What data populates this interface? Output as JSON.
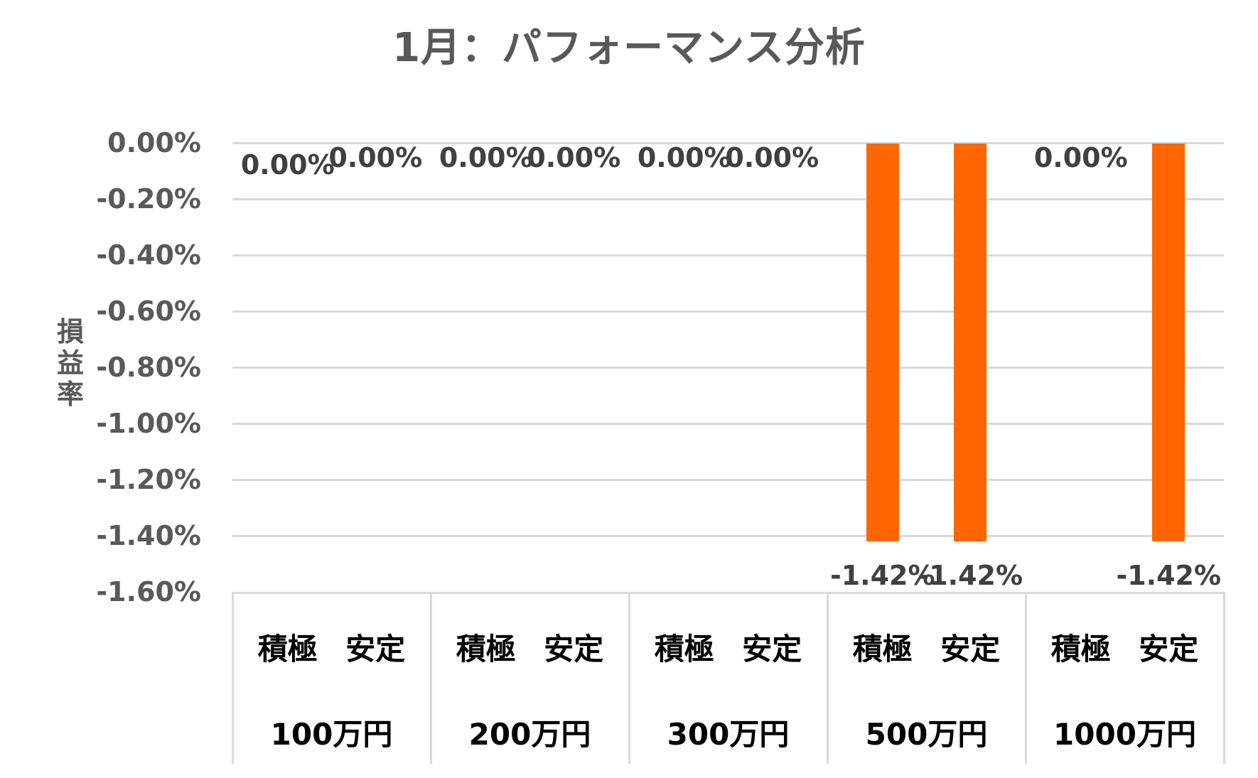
{
  "chart_data": {
    "type": "bar",
    "title": "1月：パフォーマンス分析",
    "xlabel": "",
    "ylabel": "損益率",
    "ylim": [
      -1.6,
      0.0
    ],
    "y_unit": "%",
    "yticks": [
      "0.00%",
      "-0.20%",
      "-0.40%",
      "-0.60%",
      "-0.80%",
      "-1.00%",
      "-1.20%",
      "-1.40%",
      "-1.60%"
    ],
    "grid": true,
    "legend": null,
    "bar_color": "#ff6600",
    "groups": [
      "100万円",
      "200万円",
      "300万円",
      "500万円",
      "1000万円"
    ],
    "subcategories": [
      "積極",
      "安定"
    ],
    "categories": [
      "100万円 積極",
      "100万円 安定",
      "200万円 積極",
      "200万円 安定",
      "300万円 積極",
      "300万円 安定",
      "500万円 積極",
      "500万円 安定",
      "1000万円 積極",
      "1000万円 安定"
    ],
    "values": [
      0.0,
      0.0,
      0.0,
      0.0,
      0.0,
      0.0,
      -1.42,
      -1.42,
      0.0,
      -1.42
    ],
    "data_labels": [
      "0.00%",
      "0.00%",
      "0.00%",
      "0.00%",
      "0.00%",
      "0.00%",
      "-1.42%",
      "-1.42%",
      "0.00%",
      "-1.42%"
    ]
  },
  "colors": {
    "bar": "#ff6600",
    "grid": "#d9d9d9",
    "axis_text": "#595959",
    "label_text": "#404040",
    "category_text": "#000000"
  }
}
